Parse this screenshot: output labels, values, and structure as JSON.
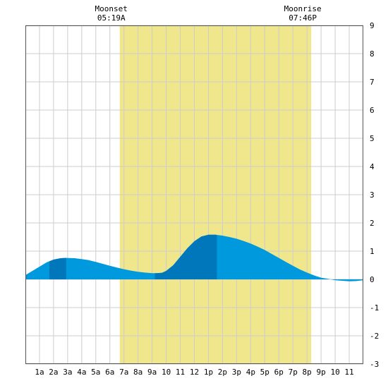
{
  "chart_data": {
    "type": "area",
    "title": "",
    "xlabel": "",
    "ylabel": "",
    "xlim": [
      0,
      24
    ],
    "ylim": [
      -3,
      9
    ],
    "y_ticks": [
      "-3",
      "-2",
      "-1",
      "0",
      "1",
      "2",
      "3",
      "4",
      "5",
      "6",
      "7",
      "8",
      "9"
    ],
    "y_tick_values": [
      -3,
      -2,
      -1,
      0,
      1,
      2,
      3,
      4,
      5,
      6,
      7,
      8,
      9
    ],
    "x_ticks": [
      "1a",
      "2a",
      "3a",
      "4a",
      "5a",
      "6a",
      "7a",
      "8a",
      "9a",
      "10",
      "11",
      "12",
      "1p",
      "2p",
      "3p",
      "4p",
      "5p",
      "6p",
      "7p",
      "8p",
      "9p",
      "10",
      "11"
    ],
    "x_tick_values": [
      1,
      2,
      3,
      4,
      5,
      6,
      7,
      8,
      9,
      10,
      11,
      12,
      13,
      14,
      15,
      16,
      17,
      18,
      19,
      20,
      21,
      22,
      23
    ],
    "grid": true,
    "highlight_band": {
      "from_hour": 6.7,
      "to_hour": 20.3,
      "color": "#f0e68c"
    },
    "colors": {
      "fill_light": "#0099dd",
      "fill_dark": "#0077bb",
      "grid": "#cccccc",
      "band": "#f0e68c"
    },
    "tide_series": {
      "x": [
        0,
        0.5,
        1,
        1.5,
        2,
        2.5,
        2.9,
        3.5,
        4,
        4.5,
        5,
        5.5,
        6,
        6.5,
        7,
        7.5,
        8,
        8.5,
        9,
        9.3,
        9.7,
        10,
        10.5,
        11,
        11.5,
        12,
        12.5,
        13,
        13.5,
        14,
        14.5,
        15,
        15.5,
        16,
        16.5,
        17,
        17.5,
        18,
        18.5,
        19,
        19.5,
        20,
        20.5,
        21,
        21.5,
        22,
        22.5,
        23,
        23.5,
        24
      ],
      "y": [
        0.15,
        0.3,
        0.45,
        0.6,
        0.7,
        0.75,
        0.76,
        0.75,
        0.72,
        0.68,
        0.62,
        0.55,
        0.48,
        0.42,
        0.36,
        0.31,
        0.27,
        0.24,
        0.22,
        0.22,
        0.23,
        0.3,
        0.5,
        0.8,
        1.1,
        1.35,
        1.52,
        1.58,
        1.58,
        1.55,
        1.5,
        1.44,
        1.36,
        1.27,
        1.16,
        1.04,
        0.9,
        0.76,
        0.62,
        0.48,
        0.35,
        0.24,
        0.14,
        0.06,
        0.02,
        -0.03,
        -0.05,
        -0.07,
        -0.06,
        -0.03
      ]
    },
    "dark_spans": [
      [
        1.7,
        2.9
      ],
      [
        9.2,
        13.6
      ]
    ],
    "annotations": [
      {
        "label": "Moonset",
        "time": "05:19A",
        "hour": 6.7
      },
      {
        "label": "Moonrise",
        "time": "07:46P",
        "hour": 20.3
      }
    ]
  }
}
